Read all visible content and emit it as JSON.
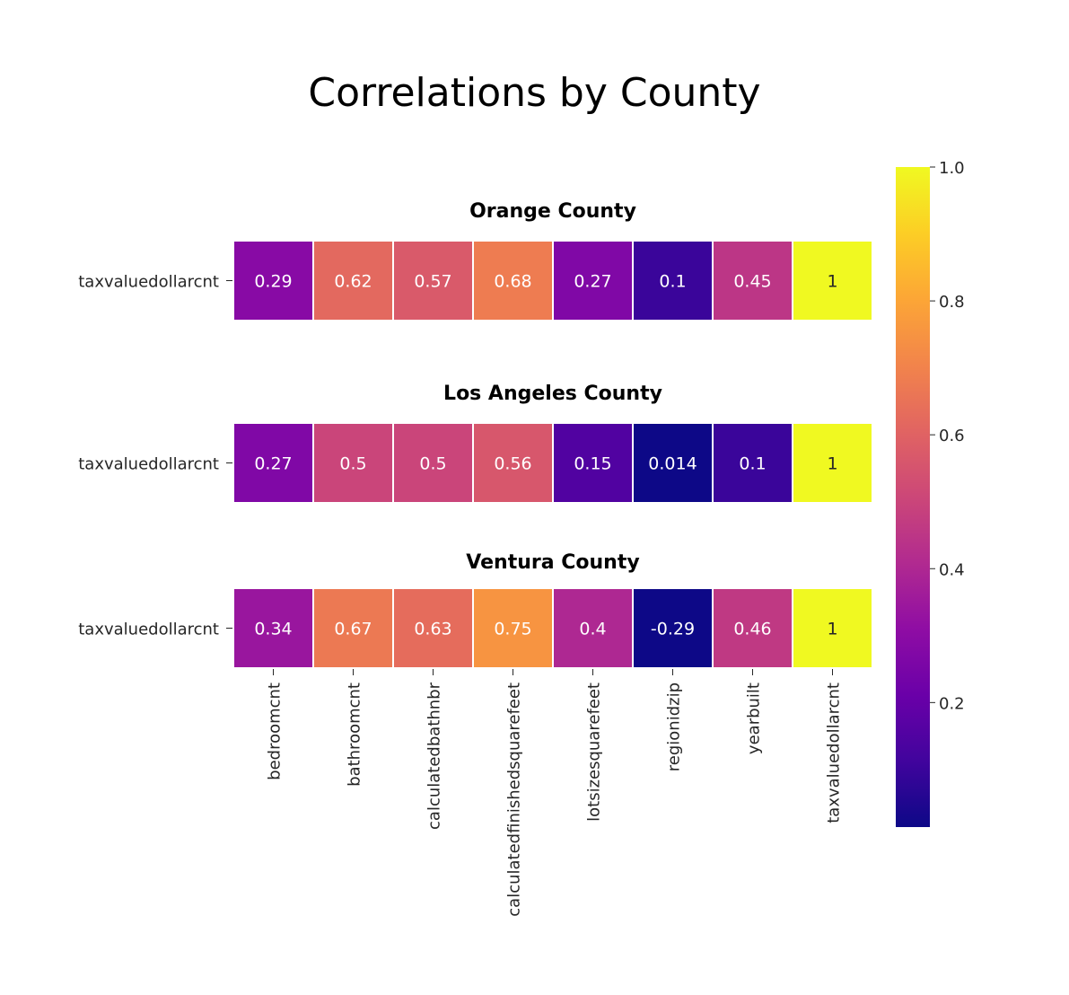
{
  "title": "Correlations by County",
  "chart_data": [
    {
      "type": "heatmap",
      "title": "Orange County",
      "row_label": "taxvaluedollarcnt",
      "columns": [
        "bedroomcnt",
        "bathroomcnt",
        "calculatedbathnbr",
        "calculatedfinishedsquarefeet",
        "lotsizesquarefeet",
        "regionidzip",
        "yearbuilt",
        "taxvaluedollarcnt"
      ],
      "values": [
        0.29,
        0.62,
        0.57,
        0.68,
        0.27,
        0.1,
        0.45,
        1
      ],
      "labels": [
        "0.29",
        "0.62",
        "0.57",
        "0.68",
        "0.27",
        "0.1",
        "0.45",
        "1"
      ]
    },
    {
      "type": "heatmap",
      "title": "Los Angeles County",
      "row_label": "taxvaluedollarcnt",
      "columns": [
        "bedroomcnt",
        "bathroomcnt",
        "calculatedbathnbr",
        "calculatedfinishedsquarefeet",
        "lotsizesquarefeet",
        "regionidzip",
        "yearbuilt",
        "taxvaluedollarcnt"
      ],
      "values": [
        0.27,
        0.5,
        0.5,
        0.56,
        0.15,
        0.014,
        0.1,
        1
      ],
      "labels": [
        "0.27",
        "0.5",
        "0.5",
        "0.56",
        "0.15",
        "0.014",
        "0.1",
        "1"
      ]
    },
    {
      "type": "heatmap",
      "title": "Ventura County",
      "row_label": "taxvaluedollarcnt",
      "columns": [
        "bedroomcnt",
        "bathroomcnt",
        "calculatedbathnbr",
        "calculatedfinishedsquarefeet",
        "lotsizesquarefeet",
        "regionidzip",
        "yearbuilt",
        "taxvaluedollarcnt"
      ],
      "values": [
        0.34,
        0.67,
        0.63,
        0.75,
        0.4,
        -0.29,
        0.46,
        1
      ],
      "labels": [
        "0.34",
        "0.67",
        "0.63",
        "0.75",
        "0.4",
        "-0.29",
        "0.46",
        "1"
      ]
    }
  ],
  "colorbar": {
    "colormap": "plasma",
    "range": [
      0.014,
      1.0
    ],
    "ticks": [
      0.2,
      0.4,
      0.6,
      0.8,
      1.0
    ],
    "tick_labels": [
      "0.2",
      "0.4",
      "0.6",
      "0.8",
      "1.0"
    ]
  }
}
